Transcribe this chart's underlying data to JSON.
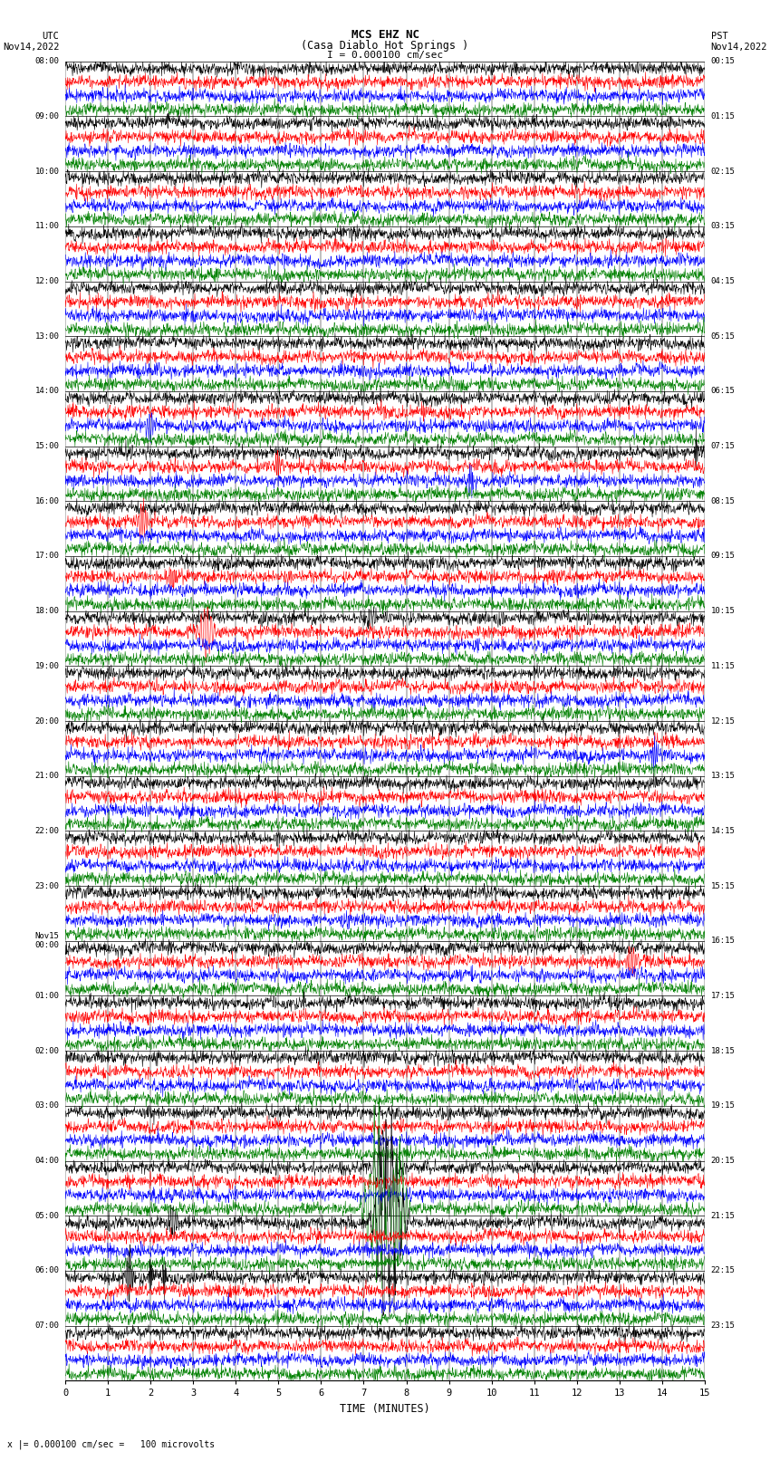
{
  "title_line1": "MCS EHZ NC",
  "title_line2": "(Casa Diablo Hot Springs )",
  "scale_text": "I = 0.000100 cm/sec",
  "bottom_note": "x |= 0.000100 cm/sec =   100 microvolts",
  "xlabel": "TIME (MINUTES)",
  "left_times": [
    "08:00",
    "09:00",
    "10:00",
    "11:00",
    "12:00",
    "13:00",
    "14:00",
    "15:00",
    "16:00",
    "17:00",
    "18:00",
    "19:00",
    "20:00",
    "21:00",
    "22:00",
    "23:00",
    "Nov15\n00:00",
    "01:00",
    "02:00",
    "03:00",
    "04:00",
    "05:00",
    "06:00",
    "07:00"
  ],
  "right_times": [
    "00:15",
    "01:15",
    "02:15",
    "03:15",
    "04:15",
    "05:15",
    "06:15",
    "07:15",
    "08:15",
    "09:15",
    "10:15",
    "11:15",
    "12:15",
    "13:15",
    "14:15",
    "15:15",
    "16:15",
    "17:15",
    "18:15",
    "19:15",
    "20:15",
    "21:15",
    "22:15",
    "23:15"
  ],
  "n_rows": 24,
  "traces_per_row": 4,
  "colors": [
    "black",
    "red",
    "blue",
    "green"
  ],
  "bg_color": "white",
  "fig_width": 8.5,
  "fig_height": 16.13,
  "dpi": 100,
  "minutes": 15,
  "noise_amp": 0.012,
  "seed": 42
}
